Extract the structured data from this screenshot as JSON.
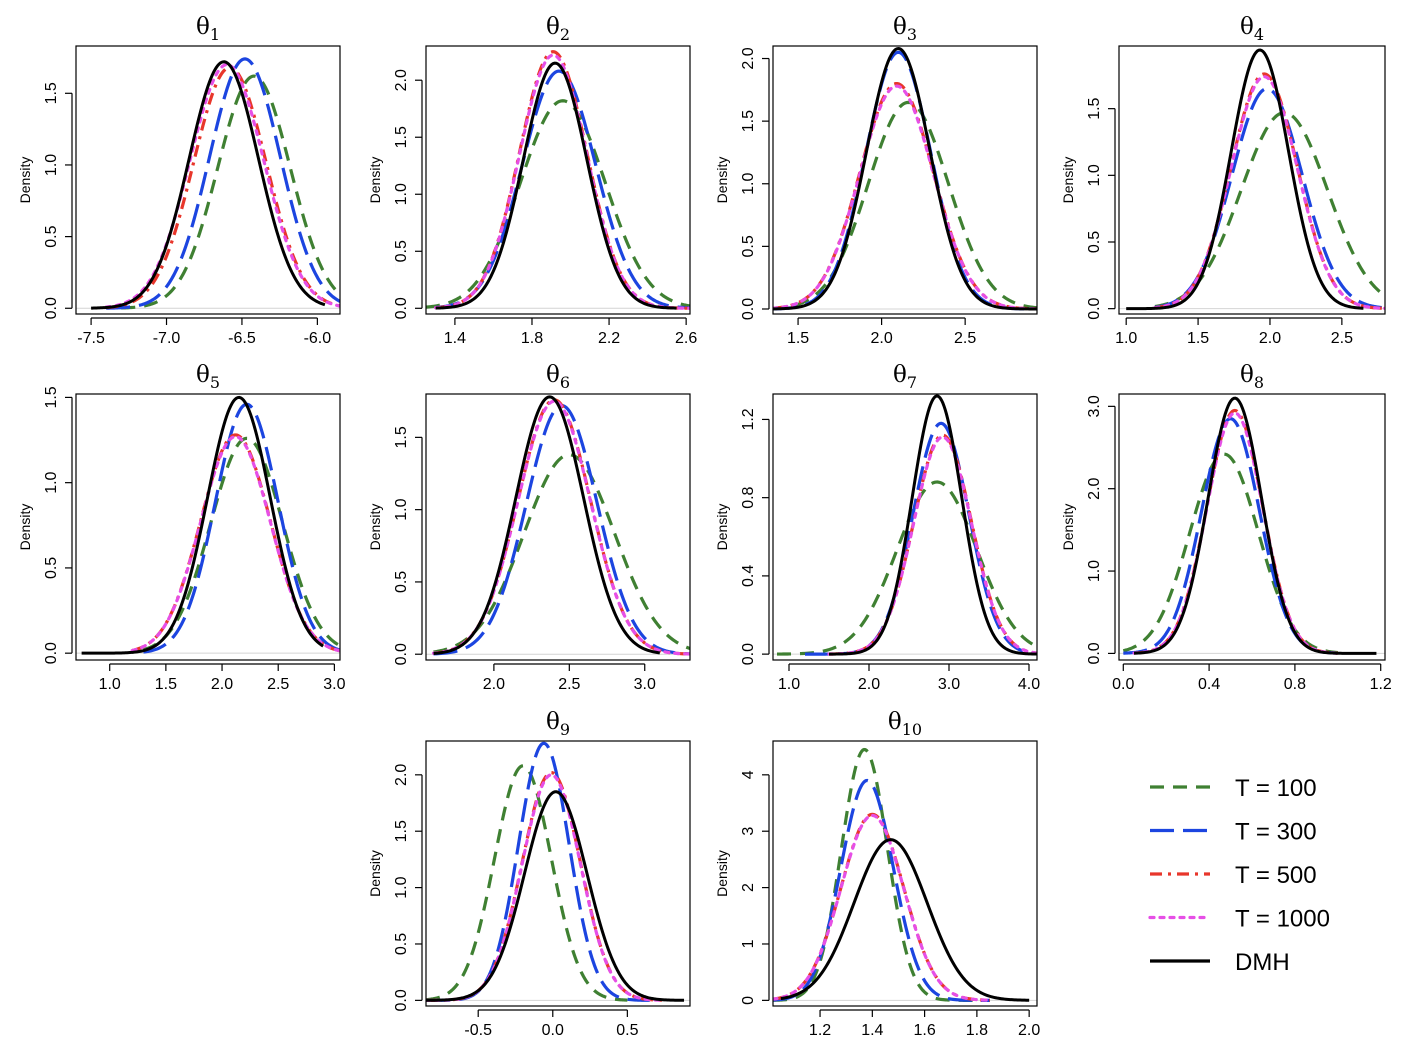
{
  "legend": [
    {
      "label": "T = 100",
      "color": "#3f8032",
      "style": "dash"
    },
    {
      "label": "T = 300",
      "color": "#1c45e0",
      "style": "longdash"
    },
    {
      "label": "T = 500",
      "color": "#e8362b",
      "style": "dashdot"
    },
    {
      "label": "T = 1000",
      "color": "#e64fe6",
      "style": "dot"
    },
    {
      "label": "DMH",
      "color": "#000000",
      "style": "solid"
    }
  ],
  "chart_data": [
    {
      "type": "line",
      "title_base": "θ",
      "title_sub": "1",
      "ylabel": "Density",
      "xlabel": "",
      "xlim": [
        -7.6,
        -5.85
      ],
      "ylim": [
        -0.04,
        1.83
      ],
      "xticks": [
        -7.5,
        -7.0,
        -6.5,
        -6.0
      ],
      "xtick_labels": [
        "-7.5",
        "-7.0",
        "-6.5",
        "-6.0"
      ],
      "yticks": [
        0,
        0.5,
        1.0,
        1.5
      ],
      "ytick_labels": [
        "0.0",
        "0.5",
        "1.0",
        "1.5"
      ],
      "series": [
        {
          "name": "T = 100",
          "mu": -6.42,
          "sd": 0.24,
          "peak": 1.62,
          "lo": -7.3,
          "hi": -5.85
        },
        {
          "name": "T = 300",
          "mu": -6.48,
          "sd": 0.235,
          "peak": 1.74,
          "lo": -7.4,
          "hi": -5.85
        },
        {
          "name": "T = 500",
          "mu": -6.58,
          "sd": 0.24,
          "peak": 1.68,
          "lo": -7.4,
          "hi": -5.85
        },
        {
          "name": "T = 1000",
          "mu": -6.6,
          "sd": 0.245,
          "peak": 1.7,
          "lo": -7.4,
          "hi": -5.85
        },
        {
          "name": "DMH",
          "mu": -6.62,
          "sd": 0.23,
          "peak": 1.72,
          "lo": -7.5,
          "hi": -5.95
        }
      ]
    },
    {
      "type": "line",
      "title_base": "θ",
      "title_sub": "2",
      "ylabel": "Density",
      "xlabel": "",
      "xlim": [
        1.25,
        2.62
      ],
      "ylim": [
        -0.05,
        2.3
      ],
      "xticks": [
        1.4,
        1.8,
        2.2,
        2.6
      ],
      "xtick_labels": [
        "1.4",
        "1.8",
        "2.2",
        "2.6"
      ],
      "yticks": [
        0,
        0.5,
        1.0,
        1.5,
        2.0
      ],
      "ytick_labels": [
        "0.0",
        "0.5",
        "1.0",
        "1.5",
        "2.0"
      ],
      "series": [
        {
          "name": "T = 100",
          "mu": 1.96,
          "sd": 0.22,
          "peak": 1.82,
          "lo": 1.25,
          "hi": 2.62
        },
        {
          "name": "T = 300",
          "mu": 1.94,
          "sd": 0.19,
          "peak": 2.08,
          "lo": 1.3,
          "hi": 2.62
        },
        {
          "name": "T = 500",
          "mu": 1.91,
          "sd": 0.175,
          "peak": 2.25,
          "lo": 1.3,
          "hi": 2.62
        },
        {
          "name": "T = 1000",
          "mu": 1.91,
          "sd": 0.175,
          "peak": 2.22,
          "lo": 1.3,
          "hi": 2.62
        },
        {
          "name": "DMH",
          "mu": 1.92,
          "sd": 0.165,
          "peak": 2.15,
          "lo": 1.3,
          "hi": 2.55
        }
      ]
    },
    {
      "type": "line",
      "title_base": "θ",
      "title_sub": "3",
      "ylabel": "Density",
      "xlabel": "",
      "xlim": [
        1.35,
        2.93
      ],
      "ylim": [
        -0.04,
        2.1
      ],
      "xticks": [
        1.5,
        2.0,
        2.5
      ],
      "xtick_labels": [
        "1.5",
        "2.0",
        "2.5"
      ],
      "yticks": [
        0,
        0.5,
        1.0,
        1.5,
        2.0
      ],
      "ytick_labels": [
        "0.0",
        "0.5",
        "1.0",
        "1.5",
        "2.0"
      ],
      "series": [
        {
          "name": "T = 100",
          "mu": 2.16,
          "sd": 0.24,
          "peak": 1.65,
          "lo": 1.35,
          "hi": 2.93
        },
        {
          "name": "T = 300",
          "mu": 2.1,
          "sd": 0.195,
          "peak": 2.05,
          "lo": 1.35,
          "hi": 2.93
        },
        {
          "name": "T = 500",
          "mu": 2.09,
          "sd": 0.22,
          "peak": 1.8,
          "lo": 1.35,
          "hi": 2.93
        },
        {
          "name": "T = 1000",
          "mu": 2.09,
          "sd": 0.22,
          "peak": 1.78,
          "lo": 1.35,
          "hi": 2.93
        },
        {
          "name": "DMH",
          "mu": 2.1,
          "sd": 0.19,
          "peak": 2.08,
          "lo": 1.35,
          "hi": 2.93
        }
      ]
    },
    {
      "type": "line",
      "title_base": "θ",
      "title_sub": "4",
      "ylabel": "Density",
      "xlabel": "",
      "xlim": [
        0.95,
        2.8
      ],
      "ylim": [
        -0.04,
        1.97
      ],
      "xticks": [
        1.0,
        1.5,
        2.0,
        2.5
      ],
      "xtick_labels": [
        "1.0",
        "1.5",
        "2.0",
        "2.5"
      ],
      "yticks": [
        0,
        0.5,
        1.0,
        1.5
      ],
      "ytick_labels": [
        "0.0",
        "0.5",
        "1.0",
        "1.5"
      ],
      "series": [
        {
          "name": "T = 100",
          "mu": 2.1,
          "sd": 0.3,
          "peak": 1.47,
          "lo": 1.2,
          "hi": 2.8
        },
        {
          "name": "T = 300",
          "mu": 1.98,
          "sd": 0.245,
          "peak": 1.65,
          "lo": 1.2,
          "hi": 2.8
        },
        {
          "name": "T = 500",
          "mu": 1.96,
          "sd": 0.23,
          "peak": 1.76,
          "lo": 1.2,
          "hi": 2.8
        },
        {
          "name": "T = 1000",
          "mu": 1.96,
          "sd": 0.23,
          "peak": 1.74,
          "lo": 1.2,
          "hi": 2.8
        },
        {
          "name": "DMH",
          "mu": 1.93,
          "sd": 0.2,
          "peak": 1.94,
          "lo": 1.0,
          "hi": 2.65
        }
      ]
    },
    {
      "type": "line",
      "title_base": "θ",
      "title_sub": "5",
      "ylabel": "Density",
      "xlabel": "",
      "xlim": [
        0.7,
        3.05
      ],
      "ylim": [
        -0.04,
        1.52
      ],
      "xticks": [
        1.0,
        1.5,
        2.0,
        2.5,
        3.0
      ],
      "xtick_labels": [
        "1.0",
        "1.5",
        "2.0",
        "2.5",
        "3.0"
      ],
      "yticks": [
        0,
        0.5,
        1.0,
        1.5
      ],
      "ytick_labels": [
        "0.0",
        "0.5",
        "1.0",
        "1.5"
      ],
      "series": [
        {
          "name": "T = 100",
          "mu": 2.22,
          "sd": 0.32,
          "peak": 1.26,
          "lo": 1.3,
          "hi": 3.05
        },
        {
          "name": "T = 300",
          "mu": 2.22,
          "sd": 0.28,
          "peak": 1.46,
          "lo": 1.3,
          "hi": 3.05
        },
        {
          "name": "T = 500",
          "mu": 2.12,
          "sd": 0.31,
          "peak": 1.28,
          "lo": 1.2,
          "hi": 3.05
        },
        {
          "name": "T = 1000",
          "mu": 2.12,
          "sd": 0.31,
          "peak": 1.27,
          "lo": 1.2,
          "hi": 3.05
        },
        {
          "name": "DMH",
          "mu": 2.15,
          "sd": 0.28,
          "peak": 1.5,
          "lo": 0.75,
          "hi": 2.9
        }
      ]
    },
    {
      "type": "line",
      "title_base": "θ",
      "title_sub": "6",
      "ylabel": "Density",
      "xlabel": "",
      "xlim": [
        1.55,
        3.3
      ],
      "ylim": [
        -0.04,
        1.8
      ],
      "xticks": [
        2.0,
        2.5,
        3.0
      ],
      "xtick_labels": [
        "2.0",
        "2.5",
        "3.0"
      ],
      "yticks": [
        0,
        0.5,
        1.0,
        1.5
      ],
      "ytick_labels": [
        "0.0",
        "0.5",
        "1.0",
        "1.5"
      ],
      "series": [
        {
          "name": "T = 100",
          "mu": 2.5,
          "sd": 0.3,
          "peak": 1.38,
          "lo": 1.6,
          "hi": 3.3
        },
        {
          "name": "T = 300",
          "mu": 2.45,
          "sd": 0.235,
          "peak": 1.72,
          "lo": 1.6,
          "hi": 3.3
        },
        {
          "name": "T = 500",
          "mu": 2.4,
          "sd": 0.24,
          "peak": 1.76,
          "lo": 1.6,
          "hi": 3.3
        },
        {
          "name": "T = 1000",
          "mu": 2.4,
          "sd": 0.24,
          "peak": 1.75,
          "lo": 1.6,
          "hi": 3.3
        },
        {
          "name": "DMH",
          "mu": 2.37,
          "sd": 0.225,
          "peak": 1.78,
          "lo": 1.6,
          "hi": 3.1
        }
      ]
    },
    {
      "type": "line",
      "title_base": "θ",
      "title_sub": "7",
      "ylabel": "Density",
      "xlabel": "",
      "xlim": [
        0.8,
        4.1
      ],
      "ylim": [
        -0.03,
        1.33
      ],
      "xticks": [
        1.0,
        2.0,
        3.0,
        4.0
      ],
      "xtick_labels": [
        "1.0",
        "2.0",
        "3.0",
        "4.0"
      ],
      "yticks": [
        0,
        0.4,
        0.8,
        1.2
      ],
      "ytick_labels": [
        "0.0",
        "0.4",
        "0.8",
        "1.2"
      ],
      "series": [
        {
          "name": "T = 100",
          "mu": 2.85,
          "sd": 0.5,
          "peak": 0.88,
          "lo": 0.85,
          "hi": 4.1
        },
        {
          "name": "T = 300",
          "mu": 2.9,
          "sd": 0.35,
          "peak": 1.18,
          "lo": 1.2,
          "hi": 4.1
        },
        {
          "name": "T = 500",
          "mu": 2.92,
          "sd": 0.36,
          "peak": 1.12,
          "lo": 1.5,
          "hi": 4.1
        },
        {
          "name": "T = 1000",
          "mu": 2.92,
          "sd": 0.36,
          "peak": 1.11,
          "lo": 1.5,
          "hi": 4.1
        },
        {
          "name": "DMH",
          "mu": 2.85,
          "sd": 0.31,
          "peak": 1.32,
          "lo": 1.5,
          "hi": 4.1
        }
      ]
    },
    {
      "type": "line",
      "title_base": "θ",
      "title_sub": "8",
      "ylabel": "Density",
      "xlabel": "",
      "xlim": [
        -0.02,
        1.22
      ],
      "ylim": [
        -0.08,
        3.15
      ],
      "xticks": [
        0.0,
        0.4,
        0.8,
        1.2
      ],
      "xtick_labels": [
        "0.0",
        "0.4",
        "0.8",
        "1.2"
      ],
      "yticks": [
        0,
        1.0,
        2.0,
        3.0
      ],
      "ytick_labels": [
        "0.0",
        "1.0",
        "2.0",
        "3.0"
      ],
      "series": [
        {
          "name": "T = 100",
          "mu": 0.47,
          "sd": 0.16,
          "peak": 2.42,
          "lo": 0.0,
          "hi": 1.0
        },
        {
          "name": "T = 300",
          "mu": 0.5,
          "sd": 0.135,
          "peak": 2.85,
          "lo": 0.0,
          "hi": 1.0
        },
        {
          "name": "T = 500",
          "mu": 0.52,
          "sd": 0.13,
          "peak": 2.95,
          "lo": 0.05,
          "hi": 1.0
        },
        {
          "name": "T = 1000",
          "mu": 0.52,
          "sd": 0.13,
          "peak": 2.92,
          "lo": 0.05,
          "hi": 1.0
        },
        {
          "name": "DMH",
          "mu": 0.52,
          "sd": 0.125,
          "peak": 3.1,
          "lo": 0.05,
          "hi": 1.18
        }
      ]
    },
    {
      "type": "line",
      "title_base": "θ",
      "title_sub": "9",
      "ylabel": "Density",
      "xlabel": "",
      "xlim": [
        -0.85,
        0.92
      ],
      "ylim": [
        -0.05,
        2.3
      ],
      "xticks": [
        -0.5,
        0.0,
        0.5
      ],
      "xtick_labels": [
        "-0.5",
        "0.0",
        "0.5"
      ],
      "yticks": [
        0,
        0.5,
        1.0,
        1.5,
        2.0
      ],
      "ytick_labels": [
        "0.0",
        "0.5",
        "1.0",
        "1.5",
        "2.0"
      ],
      "series": [
        {
          "name": "T = 100",
          "mu": -0.2,
          "sd": 0.19,
          "peak": 2.08,
          "lo": -0.85,
          "hi": 0.5
        },
        {
          "name": "T = 300",
          "mu": -0.06,
          "sd": 0.17,
          "peak": 2.28,
          "lo": -0.85,
          "hi": 0.65
        },
        {
          "name": "T = 500",
          "mu": -0.01,
          "sd": 0.195,
          "peak": 2.02,
          "lo": -0.85,
          "hi": 0.75
        },
        {
          "name": "T = 1000",
          "mu": -0.01,
          "sd": 0.195,
          "peak": 2.0,
          "lo": -0.85,
          "hi": 0.75
        },
        {
          "name": "DMH",
          "mu": 0.02,
          "sd": 0.21,
          "peak": 1.85,
          "lo": -0.85,
          "hi": 0.88
        }
      ]
    },
    {
      "type": "line",
      "title_base": "θ",
      "title_sub": "10",
      "ylabel": "Density",
      "xlabel": "",
      "xlim": [
        1.02,
        2.03
      ],
      "ylim": [
        -0.1,
        4.6
      ],
      "xticks": [
        1.2,
        1.4,
        1.6,
        1.8,
        2.0
      ],
      "xtick_labels": [
        "1.2",
        "1.4",
        "1.6",
        "1.8",
        "2.0"
      ],
      "yticks": [
        0,
        1,
        2,
        3,
        4
      ],
      "ytick_labels": [
        "0",
        "1",
        "2",
        "3",
        "4"
      ],
      "series": [
        {
          "name": "T = 100",
          "mu": 1.37,
          "sd": 0.088,
          "peak": 4.45,
          "lo": 1.02,
          "hi": 1.8
        },
        {
          "name": "T = 300",
          "mu": 1.38,
          "sd": 0.1,
          "peak": 3.9,
          "lo": 1.02,
          "hi": 1.85
        },
        {
          "name": "T = 500",
          "mu": 1.4,
          "sd": 0.12,
          "peak": 3.3,
          "lo": 1.02,
          "hi": 1.85
        },
        {
          "name": "T = 1000",
          "mu": 1.4,
          "sd": 0.12,
          "peak": 3.28,
          "lo": 1.02,
          "hi": 1.85
        },
        {
          "name": "DMH",
          "mu": 1.47,
          "sd": 0.14,
          "peak": 2.85,
          "lo": 1.05,
          "hi": 2.0
        }
      ]
    }
  ]
}
